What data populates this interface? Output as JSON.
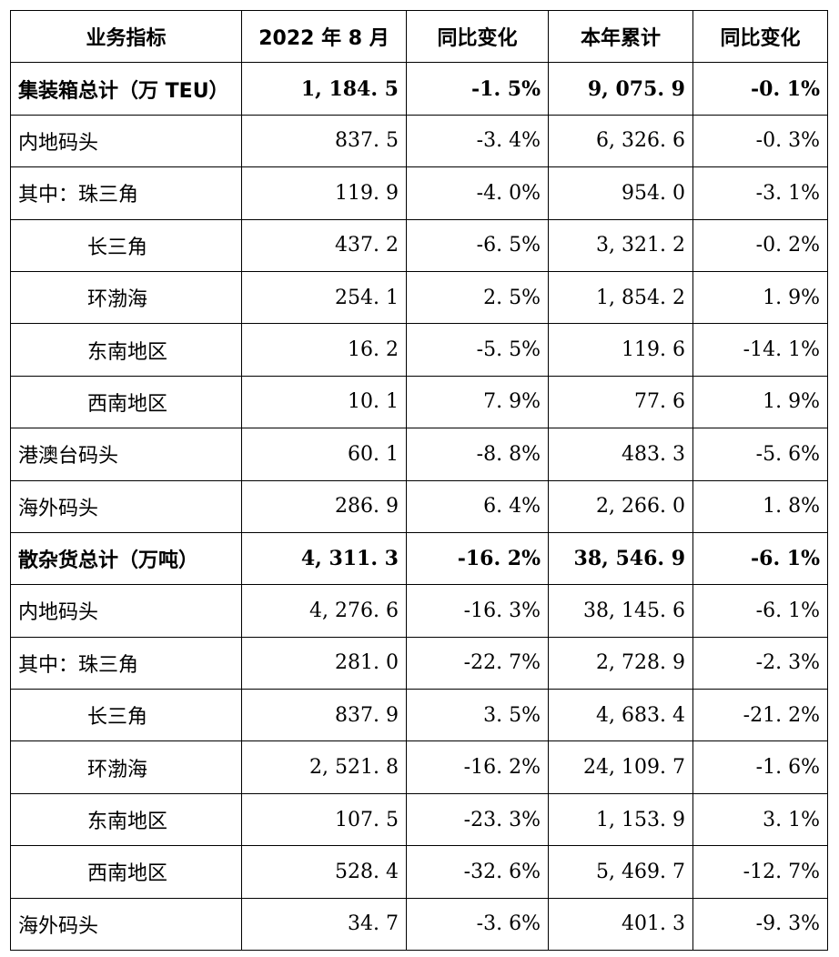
{
  "table": {
    "headers": [
      "业务指标",
      "2022 年 8 月",
      "同比变化",
      "本年累计",
      "同比变化"
    ],
    "rows": [
      {
        "label": "集装箱总计（万 TEU）",
        "month": "1, 184. 5",
        "month_yoy": "-1. 5%",
        "ytd": "9, 075. 9",
        "ytd_yoy": "-0. 1%",
        "bold": true,
        "indent": false
      },
      {
        "label": "内地码头",
        "month": "837. 5",
        "month_yoy": "-3. 4%",
        "ytd": "6, 326. 6",
        "ytd_yoy": "-0. 3%",
        "bold": false,
        "indent": false
      },
      {
        "label": "其中：珠三角",
        "month": "119. 9",
        "month_yoy": "-4. 0%",
        "ytd": "954. 0",
        "ytd_yoy": "-3. 1%",
        "bold": false,
        "indent": false
      },
      {
        "label": "长三角",
        "month": "437. 2",
        "month_yoy": "-6. 5%",
        "ytd": "3, 321. 2",
        "ytd_yoy": "-0. 2%",
        "bold": false,
        "indent": true
      },
      {
        "label": "环渤海",
        "month": "254. 1",
        "month_yoy": "2. 5%",
        "ytd": "1, 854. 2",
        "ytd_yoy": "1. 9%",
        "bold": false,
        "indent": true
      },
      {
        "label": "东南地区",
        "month": "16. 2",
        "month_yoy": "-5. 5%",
        "ytd": "119. 6",
        "ytd_yoy": "-14. 1%",
        "bold": false,
        "indent": true
      },
      {
        "label": "西南地区",
        "month": "10. 1",
        "month_yoy": "7. 9%",
        "ytd": "77. 6",
        "ytd_yoy": "1. 9%",
        "bold": false,
        "indent": true
      },
      {
        "label": "港澳台码头",
        "month": "60. 1",
        "month_yoy": "-8. 8%",
        "ytd": "483. 3",
        "ytd_yoy": "-5. 6%",
        "bold": false,
        "indent": false
      },
      {
        "label": "海外码头",
        "month": "286. 9",
        "month_yoy": "6. 4%",
        "ytd": "2, 266. 0",
        "ytd_yoy": "1. 8%",
        "bold": false,
        "indent": false
      },
      {
        "label": "散杂货总计（万吨）",
        "month": "4, 311. 3",
        "month_yoy": "-16. 2%",
        "ytd": "38, 546. 9",
        "ytd_yoy": "-6. 1%",
        "bold": true,
        "indent": false
      },
      {
        "label": "内地码头",
        "month": "4, 276. 6",
        "month_yoy": "-16. 3%",
        "ytd": "38, 145. 6",
        "ytd_yoy": "-6. 1%",
        "bold": false,
        "indent": false
      },
      {
        "label": "其中：珠三角",
        "month": "281. 0",
        "month_yoy": "-22. 7%",
        "ytd": "2, 728. 9",
        "ytd_yoy": "-2. 3%",
        "bold": false,
        "indent": false
      },
      {
        "label": "长三角",
        "month": "837. 9",
        "month_yoy": "3. 5%",
        "ytd": "4, 683. 4",
        "ytd_yoy": "-21. 2%",
        "bold": false,
        "indent": true
      },
      {
        "label": "环渤海",
        "month": "2, 521. 8",
        "month_yoy": "-16. 2%",
        "ytd": "24, 109. 7",
        "ytd_yoy": "-1. 6%",
        "bold": false,
        "indent": true
      },
      {
        "label": "东南地区",
        "month": "107. 5",
        "month_yoy": "-23. 3%",
        "ytd": "1, 153. 9",
        "ytd_yoy": "3. 1%",
        "bold": false,
        "indent": true
      },
      {
        "label": "西南地区",
        "month": "528. 4",
        "month_yoy": "-32. 6%",
        "ytd": "5, 469. 7",
        "ytd_yoy": "-12. 7%",
        "bold": false,
        "indent": true
      },
      {
        "label": "海外码头",
        "month": "34. 7",
        "month_yoy": "-3. 6%",
        "ytd": "401. 3",
        "ytd_yoy": "-9. 3%",
        "bold": false,
        "indent": false
      }
    ]
  }
}
